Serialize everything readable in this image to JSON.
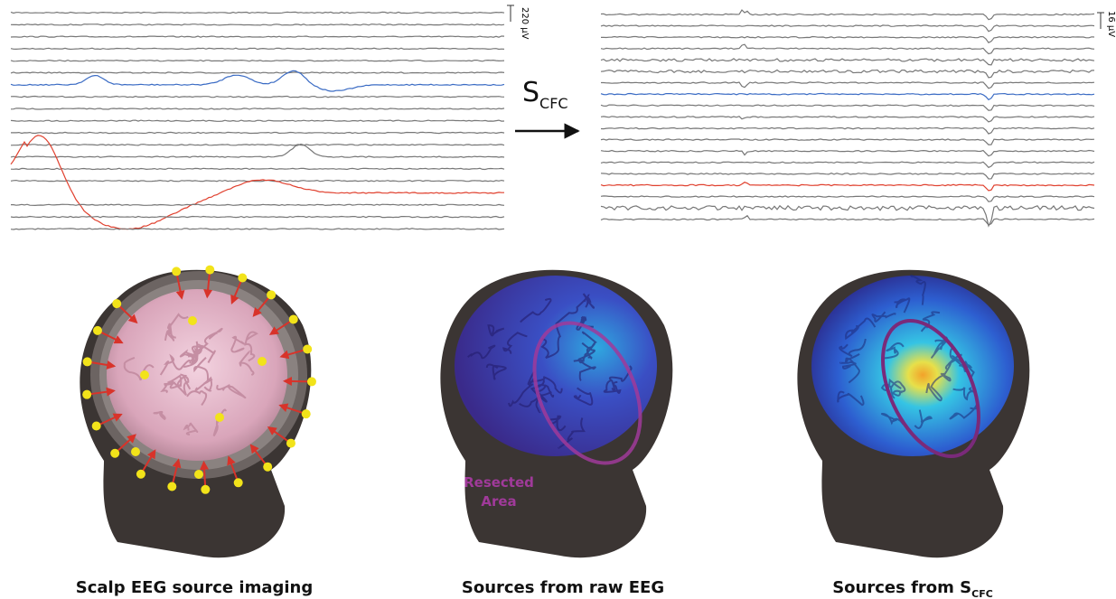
{
  "left_traces": {
    "scale_label": "220 μV"
  },
  "right_traces": {
    "scale_label": "16 μV"
  },
  "transform": {
    "symbol": "S",
    "subscript": "CFC"
  },
  "panels": [
    {
      "caption": "Scalp EEG source imaging"
    },
    {
      "caption": "Sources from raw EEG",
      "annotation_lines": [
        "Resected",
        "Area"
      ]
    },
    {
      "caption": "Sources from S",
      "caption_subscript": "CFC"
    }
  ]
}
